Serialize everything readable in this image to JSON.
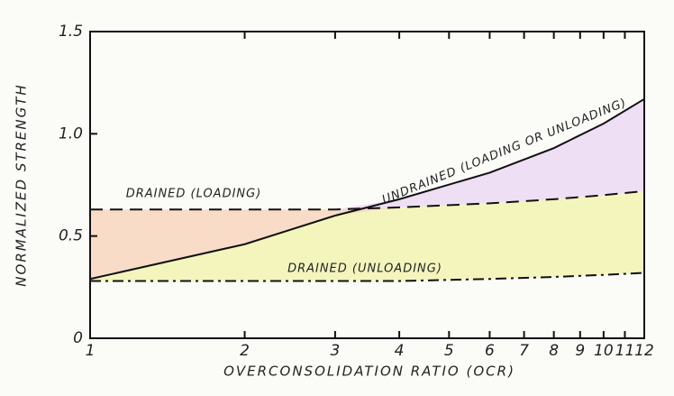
{
  "chart_data": {
    "type": "line",
    "x_label": "OVERCONSOLIDATION RATIO (OCR)",
    "y_label": "NORMALIZED STRENGTH",
    "x": [
      1,
      2,
      3,
      4,
      6,
      8,
      10,
      12
    ],
    "series": [
      {
        "name": "UNDRAINED (LOADING OR UNLOADING)",
        "color": "#111111",
        "style": "solid",
        "values": [
          0.29,
          0.46,
          0.6,
          0.68,
          0.81,
          0.93,
          1.05,
          1.17
        ]
      },
      {
        "name": "DRAINED (LOADING)",
        "color": "#111111",
        "style": "dashed",
        "values": [
          0.63,
          0.63,
          0.63,
          0.64,
          0.66,
          0.68,
          0.7,
          0.72
        ]
      },
      {
        "name": "DRAINED (UNLOADING)",
        "color": "#111111",
        "style": "dashdot",
        "values": [
          0.28,
          0.28,
          0.28,
          0.28,
          0.29,
          0.3,
          0.31,
          0.32
        ]
      }
    ],
    "xscale": "log",
    "xlim": [
      1,
      12
    ],
    "xticks": [
      1,
      2,
      3,
      4,
      5,
      6,
      7,
      8,
      9,
      10,
      11,
      12
    ],
    "ylim": [
      0,
      1.5
    ],
    "yticks": [
      0,
      0.5,
      {
        "value": 1,
        "label": "1.0"
      },
      {
        "value": 1.5,
        "label": "1.5"
      }
    ]
  }
}
